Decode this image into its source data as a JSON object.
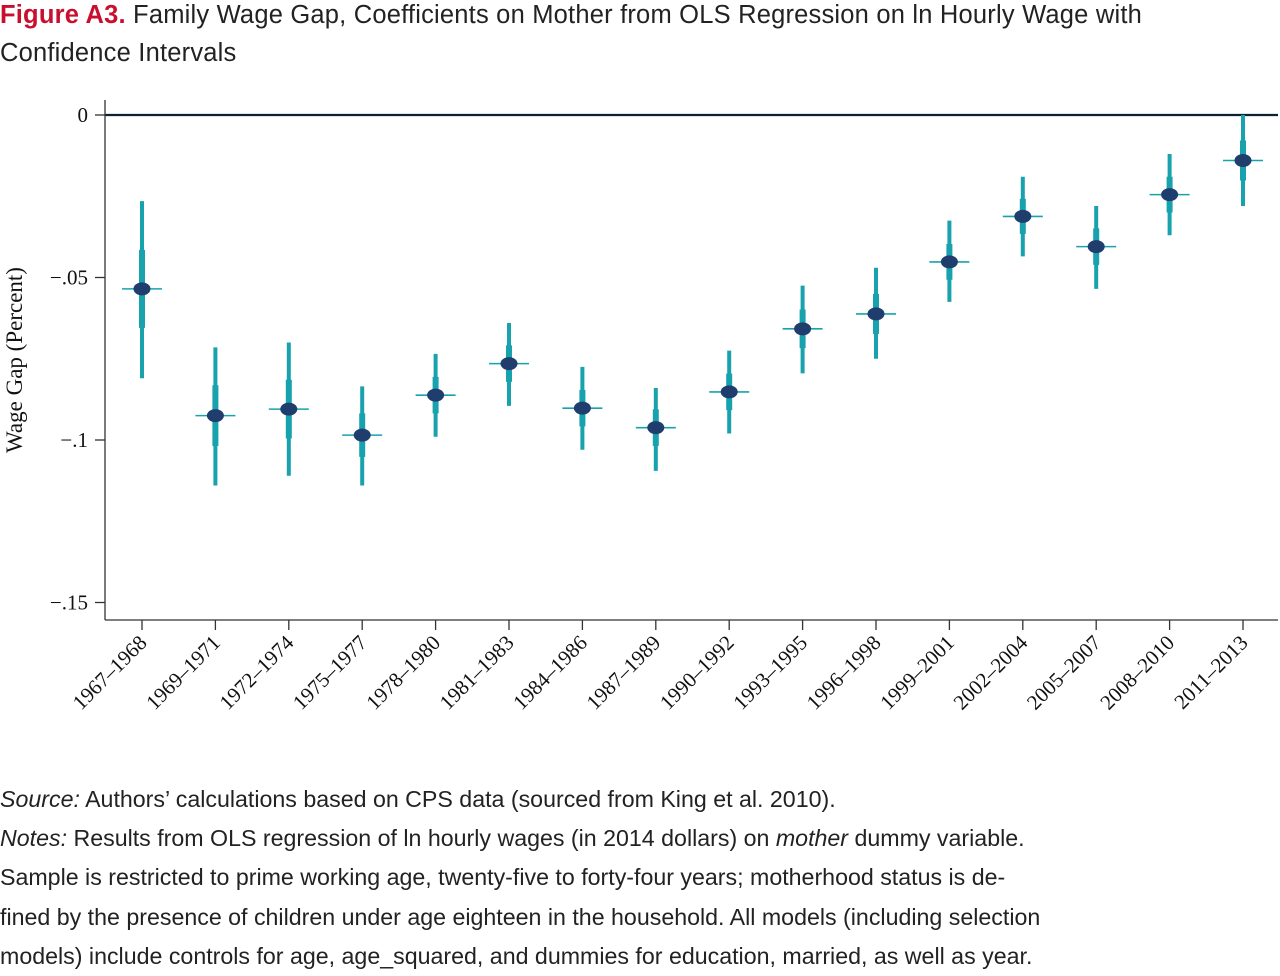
{
  "figure": {
    "label": "Figure A3.",
    "title": "Family Wage Gap, Coefficients on Mother from OLS Regression on ln Hourly Wage with Confidence Intervals"
  },
  "colors": {
    "title_label": "#c8102e",
    "ci_bar": "#17a2ad",
    "point": "#1f3e6e",
    "axis": "#333333",
    "zero_line": "#0b2233"
  },
  "chart_data": {
    "type": "scatter",
    "title": "",
    "xlabel": "",
    "ylabel": "Wage Gap (Percent)",
    "ylim": [
      -0.153,
      0.0
    ],
    "yticks": [
      {
        "value": 0,
        "label": "0"
      },
      {
        "value": -0.05,
        "label": "-.05"
      },
      {
        "value": -0.1,
        "label": "-.1"
      },
      {
        "value": -0.15,
        "label": "-.15"
      }
    ],
    "reference_line": 0,
    "grid": false,
    "categories": [
      "1967–1968",
      "1969–1971",
      "1972–1974",
      "1975–1977",
      "1978–1980",
      "1981–1983",
      "1984–1986",
      "1987–1989",
      "1990–1992",
      "1993–1995",
      "1996–1998",
      "1999–2001",
      "2002–2004",
      "2005–2007",
      "2008–2010",
      "2011–2013"
    ],
    "series": [
      {
        "values": [
          -0.0535,
          -0.0925,
          -0.0905,
          -0.0985,
          -0.0862,
          -0.0765,
          -0.0902,
          -0.0962,
          -0.0852,
          -0.0658,
          -0.0612,
          -0.0452,
          -0.0312,
          -0.0405,
          -0.0245,
          -0.014
        ],
        "ci_low": [
          -0.081,
          -0.114,
          -0.111,
          -0.114,
          -0.099,
          -0.0895,
          -0.103,
          -0.1095,
          -0.098,
          -0.0795,
          -0.075,
          -0.0575,
          -0.0435,
          -0.0535,
          -0.037,
          -0.028
        ],
        "ci_high": [
          -0.0265,
          -0.0715,
          -0.07,
          -0.0835,
          -0.0735,
          -0.064,
          -0.0775,
          -0.084,
          -0.0725,
          -0.0525,
          -0.047,
          -0.0325,
          -0.019,
          -0.028,
          -0.012,
          0.0
        ]
      }
    ]
  },
  "notes": {
    "source_label": "Source:",
    "source_text": " Authors’ calculations based on CPS data (sourced from King et al. 2010).",
    "notes_label": "Notes:",
    "notes_text_1": " Results from OLS regression of ln hourly wages (in 2014 dollars) on ",
    "notes_mother": "mother",
    "notes_text_2": " dummy variable.",
    "line_3": "Sample is restricted to prime working age, twenty-five to forty-four years; motherhood status is de-",
    "line_4": "fined by the presence of children under age eighteen in the household. All models (including selection",
    "line_5": "models) include controls for age, age_squared, and dummies for education, married, as well as year."
  }
}
